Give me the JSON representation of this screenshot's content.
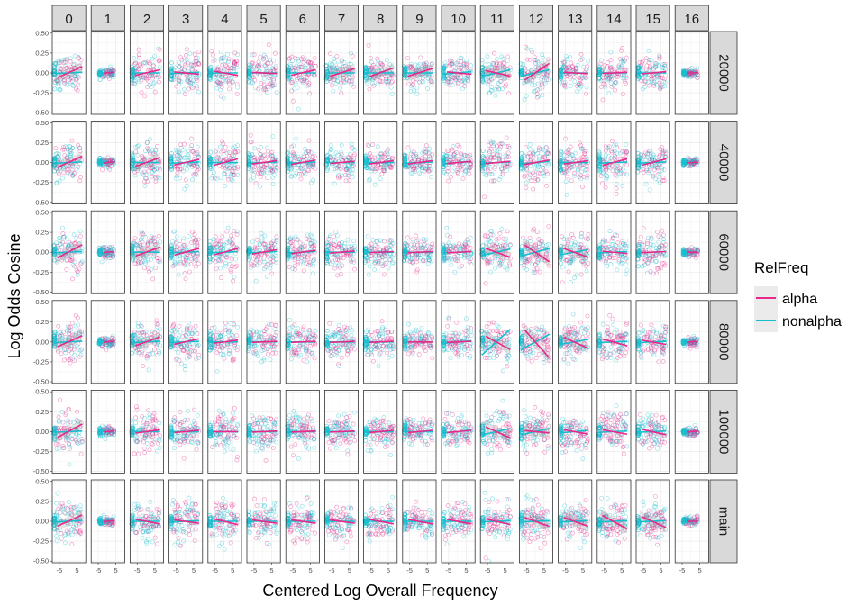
{
  "chart_data": {
    "type": "scatter",
    "xlabel": "Centered Log Overall Frequency",
    "ylabel": "Log Odds Cosine",
    "col_facets": [
      "0",
      "1",
      "2",
      "3",
      "4",
      "5",
      "6",
      "7",
      "8",
      "9",
      "10",
      "11",
      "12",
      "13",
      "14",
      "15",
      "16"
    ],
    "row_facets": [
      "20000",
      "40000",
      "60000",
      "80000",
      "100000",
      "main"
    ],
    "xlim": [
      -9,
      10
    ],
    "ylim": [
      -0.52,
      0.52
    ],
    "x_ticks": [
      -5,
      5
    ],
    "x_tick_labels": [
      "-5",
      "5"
    ],
    "y_ticks": [
      -0.5,
      -0.25,
      0,
      0.25,
      0.5
    ],
    "y_tick_labels": [
      "-0.50",
      "-0.25",
      "0.00",
      "0.25",
      "0.50"
    ],
    "grid": true,
    "legend": {
      "title": "RelFreq",
      "position": "right",
      "entries": [
        {
          "label": "alpha",
          "color": "#e7298a"
        },
        {
          "label": "nonalpha",
          "color": "#17becf"
        }
      ]
    },
    "series": [
      {
        "name": "alpha",
        "color": "#e7298a"
      },
      {
        "name": "nonalpha",
        "color": "#17becf"
      }
    ],
    "trend_slopes": {
      "alpha": [
        [
          0.01,
          0.002,
          0.005,
          -0.002,
          -0.004,
          -0.001,
          0.005,
          0.007,
          0.008,
          0.007,
          -0.002,
          -0.005,
          0.015,
          -0.001,
          0.001,
          0.002,
          0.001
        ],
        [
          0.01,
          0.003,
          0.008,
          0.005,
          0.006,
          0.003,
          0.004,
          0.002,
          0.003,
          0.003,
          0.002,
          0.002,
          0.004,
          0.003,
          0.006,
          0.006,
          0.001
        ],
        [
          0.012,
          0.002,
          0.008,
          0.006,
          0.006,
          0.004,
          0.003,
          0.002,
          0.001,
          0.001,
          0.001,
          -0.008,
          -0.015,
          -0.008,
          -0.002,
          0.001,
          0.0
        ],
        [
          0.01,
          0.002,
          0.008,
          0.005,
          0.003,
          0.001,
          0.001,
          0.001,
          0.001,
          0.0,
          0.001,
          -0.012,
          -0.025,
          -0.01,
          -0.006,
          -0.004,
          0.001
        ],
        [
          0.012,
          0.002,
          0.003,
          0.002,
          0.0,
          0.001,
          0.001,
          0.001,
          0.002,
          0.002,
          0.002,
          -0.01,
          -0.002,
          -0.004,
          -0.004,
          -0.005,
          0.001
        ],
        [
          0.01,
          0.002,
          -0.004,
          -0.003,
          -0.005,
          -0.003,
          -0.003,
          -0.003,
          -0.004,
          -0.004,
          -0.004,
          -0.005,
          -0.008,
          -0.008,
          -0.012,
          -0.01,
          0.0
        ]
      ],
      "nonalpha": [
        [
          0.001,
          0.0,
          0.0,
          0.001,
          0.0,
          0.0,
          0.0,
          0.0,
          0.0,
          0.0,
          0.002,
          0.005,
          0.005,
          0.0,
          0.0,
          0.0,
          0.0
        ],
        [
          0.001,
          0.0,
          0.0,
          0.001,
          0.0,
          0.001,
          0.001,
          0.0,
          0.0,
          0.001,
          0.002,
          0.001,
          0.002,
          0.0,
          0.001,
          0.001,
          0.0
        ],
        [
          0.001,
          0.0,
          0.0,
          0.001,
          0.001,
          0.001,
          0.001,
          0.0,
          0.0,
          0.0,
          0.001,
          0.005,
          0.006,
          0.004,
          0.001,
          0.001,
          0.0
        ],
        [
          0.001,
          0.0,
          0.001,
          0.001,
          0.0,
          0.0,
          0.0,
          0.0,
          0.0,
          0.0,
          0.002,
          0.02,
          0.012,
          0.004,
          0.001,
          0.001,
          0.0
        ],
        [
          0.001,
          0.0,
          0.0,
          0.0,
          0.0,
          0.0,
          0.0,
          0.0,
          0.0,
          0.0,
          0.002,
          0.005,
          0.005,
          0.002,
          0.001,
          0.001,
          0.0
        ],
        [
          0.001,
          0.0,
          0.0,
          0.001,
          0.0,
          0.0,
          0.0,
          0.0,
          0.0,
          0.0,
          0.0,
          0.001,
          0.001,
          0.001,
          0.001,
          0.001,
          0.0
        ]
      ]
    },
    "point_spread": {
      "by_column": [
        0.3,
        0.08,
        0.3,
        0.3,
        0.3,
        0.28,
        0.28,
        0.26,
        0.24,
        0.2,
        0.22,
        0.3,
        0.3,
        0.28,
        0.28,
        0.26,
        0.06
      ]
    }
  }
}
